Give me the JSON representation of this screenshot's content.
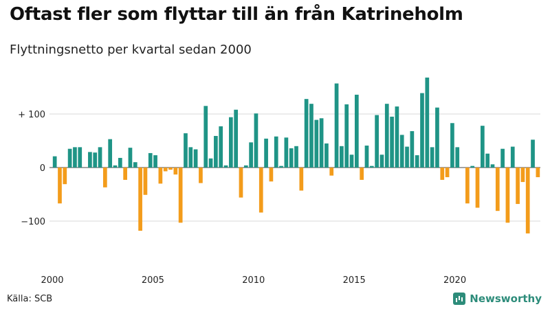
{
  "title": "Oftast fler som flyttar till än från Katrineholm",
  "subtitle": "Flyttningsnetto per kvartal sedan 2000",
  "source": "Källa: SCB",
  "brand": "Newsworthy",
  "colors": {
    "positive": "#1f9486",
    "negative": "#f39c1b",
    "grid": "#d8d8d8",
    "brand": "#2d8c7a"
  },
  "chart_data": {
    "type": "bar",
    "x_start_year": 2000,
    "periods_per_year": 4,
    "ylim": [
      -150,
      180
    ],
    "yticks": [
      -100,
      0,
      100
    ],
    "ytick_labels": [
      "−100",
      "0",
      "+ 100"
    ],
    "xticks": [
      "2000",
      "2005",
      "2010",
      "2015",
      "2020"
    ],
    "values": [
      21,
      -67,
      -31,
      35,
      38,
      38,
      0,
      29,
      28,
      38,
      -37,
      53,
      4,
      18,
      -23,
      37,
      10,
      -118,
      -51,
      27,
      23,
      -30,
      -7,
      -4,
      -13,
      -103,
      64,
      38,
      34,
      -29,
      115,
      17,
      59,
      77,
      4,
      94,
      108,
      -56,
      4,
      47,
      101,
      -84,
      54,
      -26,
      58,
      3,
      56,
      36,
      40,
      -43,
      128,
      119,
      89,
      92,
      45,
      -15,
      157,
      40,
      118,
      24,
      136,
      -23,
      41,
      3,
      98,
      24,
      119,
      95,
      114,
      61,
      39,
      68,
      23,
      139,
      168,
      38,
      112,
      -23,
      -18,
      83,
      38,
      0,
      -67,
      3,
      -75,
      78,
      26,
      6,
      -81,
      35,
      -103,
      39,
      -68,
      -27,
      -123,
      52,
      -18
    ]
  }
}
